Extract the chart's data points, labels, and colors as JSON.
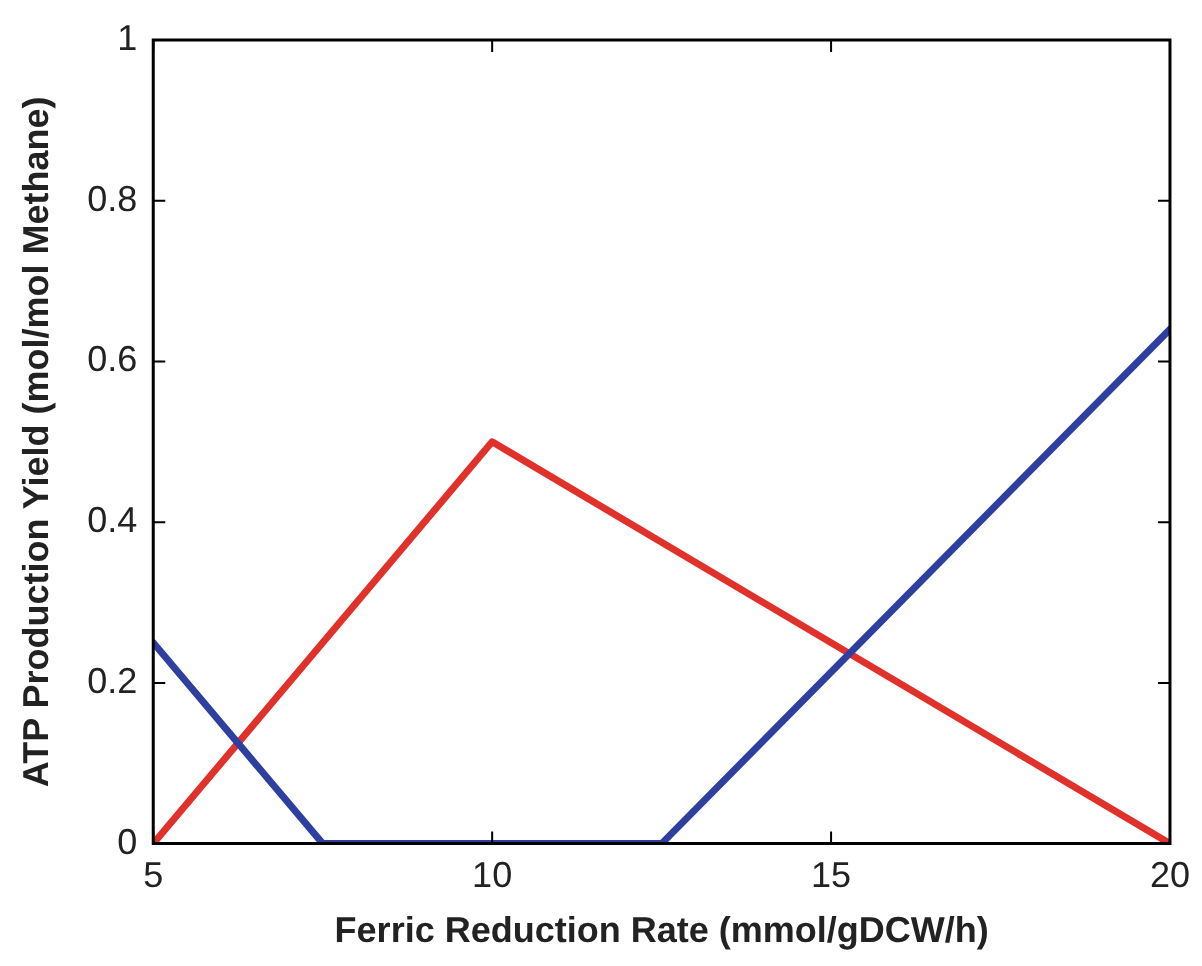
{
  "chart_data": {
    "type": "line",
    "xlabel": "Ferric Reduction Rate (mmol/gDCW/h)",
    "ylabel": "ATP Production Yield (mol/mol Methane)",
    "xlim": [
      5,
      20
    ],
    "xticks": [
      5,
      10,
      15,
      20
    ],
    "ylim": [
      0,
      1
    ],
    "yticks": [
      0,
      0.2,
      0.4,
      0.6,
      0.8,
      1
    ],
    "grid": false,
    "legend": false,
    "marker": "none",
    "line_style": "solid",
    "series": [
      {
        "color": "#2e3fa0",
        "x": [
          5,
          7.5,
          12.5,
          20
        ],
        "values": [
          0.25,
          0,
          0,
          0.64
        ]
      },
      {
        "color": "#e0312a",
        "x": [
          5,
          10,
          20
        ],
        "values": [
          0,
          0.5,
          0
        ]
      }
    ]
  }
}
